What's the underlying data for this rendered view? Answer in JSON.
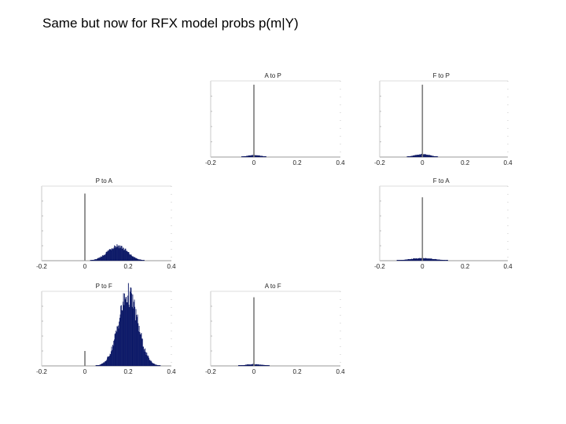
{
  "slide": {
    "title": "Same but now for RFX model probs p(m|Y)"
  },
  "colors": {
    "bar_fill": "#0b1a6e",
    "bar_edge": "#000a55",
    "axis": "#9a9a9a",
    "spike": "#7a7a7a"
  },
  "chart_data": [
    {
      "type": "histogram",
      "title": "A to P",
      "xlim": [
        -0.2,
        0.4
      ],
      "ticks": [
        -0.2,
        0,
        0.2,
        0.4
      ],
      "shape": {
        "spike_at": 0,
        "spike_height": 0.95,
        "components": [
          {
            "center": 0.0,
            "width": 0.03,
            "height": 0.025
          }
        ]
      }
    },
    {
      "type": "histogram",
      "title": "F to P",
      "xlim": [
        -0.2,
        0.4
      ],
      "ticks": [
        -0.2,
        0,
        0.2,
        0.4
      ],
      "shape": {
        "spike_at": 0,
        "spike_height": 0.95,
        "components": [
          {
            "center": 0.0,
            "width": 0.035,
            "height": 0.035
          }
        ]
      }
    },
    {
      "type": "histogram",
      "title": "P to A",
      "xlim": [
        -0.2,
        0.4
      ],
      "ticks": [
        -0.2,
        0,
        0.2,
        0.4
      ],
      "shape": {
        "spike_at": 0,
        "spike_height": 0.9,
        "components": [
          {
            "center": 0.15,
            "width": 0.045,
            "height": 0.2
          }
        ]
      }
    },
    {
      "type": "histogram",
      "title": "F to A",
      "xlim": [
        -0.2,
        0.4
      ],
      "ticks": [
        -0.2,
        0,
        0.2,
        0.4
      ],
      "shape": {
        "spike_at": 0,
        "spike_height": 0.85,
        "components": [
          {
            "center": 0.0,
            "width": 0.06,
            "height": 0.03
          }
        ]
      }
    },
    {
      "type": "histogram",
      "title": "P to F",
      "xlim": [
        -0.2,
        0.4
      ],
      "ticks": [
        -0.2,
        0,
        0.2,
        0.4
      ],
      "shape": {
        "spike_at": 0,
        "spike_height": 0.2,
        "components": [
          {
            "center": 0.2,
            "width": 0.045,
            "height": 0.95
          }
        ]
      }
    },
    {
      "type": "histogram",
      "title": "A to F",
      "xlim": [
        -0.2,
        0.4
      ],
      "ticks": [
        -0.2,
        0,
        0.2,
        0.4
      ],
      "shape": {
        "spike_at": 0,
        "spike_height": 0.92,
        "components": [
          {
            "center": 0.0,
            "width": 0.04,
            "height": 0.02
          }
        ]
      }
    }
  ]
}
